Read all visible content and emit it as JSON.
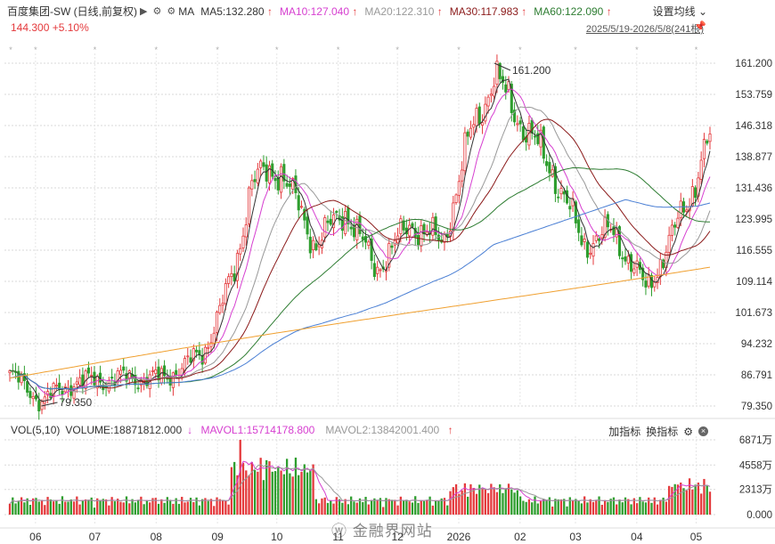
{
  "header": {
    "title": "百度集团-SW (日线,前复权)",
    "ma_label": "MA",
    "ma_items": [
      {
        "label": "MA5:132.280",
        "color": "#333333",
        "arrow": "up"
      },
      {
        "label": "MA10:127.040",
        "color": "#d63fd0",
        "arrow": "up"
      },
      {
        "label": "MA20:122.310",
        "color": "#999999",
        "arrow": "up"
      },
      {
        "label": "MA30:117.983",
        "color": "#8b1a1a",
        "arrow": "up"
      },
      {
        "label": "MA60:122.090",
        "color": "#2e7d32",
        "arrow": "up"
      }
    ],
    "price": "144.300",
    "change": "+5.10%",
    "settings_label": "设置均线",
    "date_range": "2025/5/19-2026/5/8(241根)"
  },
  "volume_header": {
    "title": "VOL(5,10)",
    "volume": "VOLUME:18871812.000",
    "mavol1": "MAVOL1:15714178.800",
    "mavol2": "MAVOL2:13842001.400",
    "add_indicator": "加指标",
    "switch_indicator": "换指标"
  },
  "watermark": "金融界网站",
  "colors": {
    "up": "#e4393c",
    "down": "#2e9e2e",
    "ma5": "#333333",
    "ma10": "#d63fd0",
    "ma20": "#999999",
    "ma30": "#8b1a1a",
    "ma60": "#2e7d32",
    "ma120": "#4a7fd4",
    "ma250": "#f0a030"
  },
  "chart_data": {
    "type": "candlestick",
    "price_axis_ticks": [
      "161.200",
      "153.759",
      "146.318",
      "138.877",
      "131.436",
      "123.995",
      "116.555",
      "109.114",
      "101.673",
      "94.232",
      "86.791",
      "79.350"
    ],
    "price_range": [
      79.35,
      161.2
    ],
    "volume_axis_ticks": [
      "6871万",
      "4558万",
      "2313万",
      "0.000"
    ],
    "volume_range": [
      0,
      6871
    ],
    "x_labels": [
      "06",
      "07",
      "08",
      "09",
      "10",
      "11",
      "12",
      "2026",
      "02",
      "03",
      "04",
      "05"
    ],
    "annotations": [
      {
        "text": "161.200",
        "kind": "max",
        "x": "2026-01-19",
        "y": 161.2
      },
      {
        "text": "79.350",
        "kind": "min",
        "x": "2025-06-04",
        "y": 79.35
      }
    ],
    "key_prices": [
      {
        "x": "2025-05-19",
        "y": 87
      },
      {
        "x": "2025-06-04",
        "y": 80.5
      },
      {
        "x": "2025-06-20",
        "y": 85
      },
      {
        "x": "2025-07-15",
        "y": 86
      },
      {
        "x": "2025-08-05",
        "y": 86
      },
      {
        "x": "2025-08-25",
        "y": 92
      },
      {
        "x": "2025-09-10",
        "y": 112
      },
      {
        "x": "2025-09-18",
        "y": 133
      },
      {
        "x": "2025-10-03",
        "y": 136
      },
      {
        "x": "2025-10-20",
        "y": 118
      },
      {
        "x": "2025-11-05",
        "y": 126
      },
      {
        "x": "2025-11-20",
        "y": 112
      },
      {
        "x": "2025-12-08",
        "y": 123
      },
      {
        "x": "2025-12-24",
        "y": 118
      },
      {
        "x": "2026-01-06",
        "y": 143
      },
      {
        "x": "2026-01-19",
        "y": 158
      },
      {
        "x": "2026-02-03",
        "y": 146
      },
      {
        "x": "2026-02-17",
        "y": 136
      },
      {
        "x": "2026-03-05",
        "y": 118
      },
      {
        "x": "2026-03-20",
        "y": 121
      },
      {
        "x": "2026-04-06",
        "y": 107
      },
      {
        "x": "2026-04-20",
        "y": 121
      },
      {
        "x": "2026-04-29",
        "y": 131
      },
      {
        "x": "2026-05-08",
        "y": 144.3
      }
    ]
  }
}
